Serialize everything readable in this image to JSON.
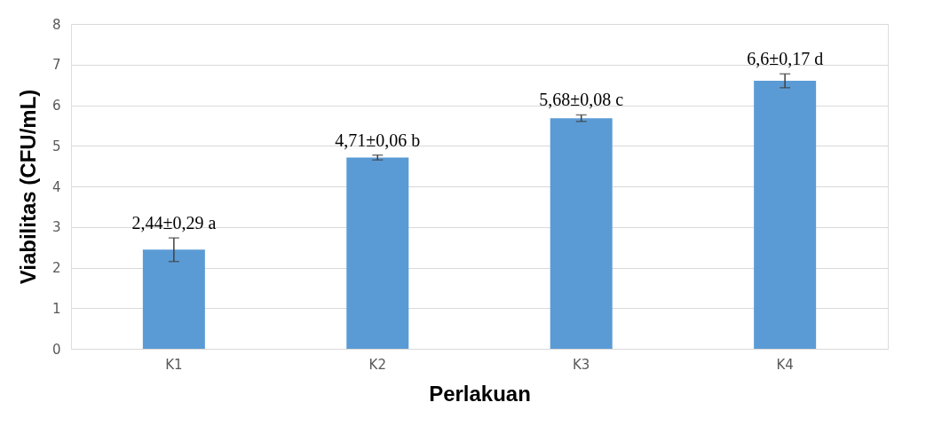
{
  "chart_data": {
    "type": "bar",
    "xlabel": "Perlakuan",
    "ylabel": "Viabilitas (CFU/mL)",
    "categories": [
      "K1",
      "K2",
      "K3",
      "K4"
    ],
    "values": [
      2.44,
      4.71,
      5.68,
      6.6
    ],
    "errors": [
      0.29,
      0.06,
      0.08,
      0.17
    ],
    "value_labels": [
      "2,44±0,29 a",
      "4,71±0,06 b",
      "5,68±0,08 c",
      "6,6±0,17 d"
    ],
    "color": "#5b9bd5",
    "ylim": [
      0,
      8
    ],
    "yticks": [
      0,
      1,
      2,
      3,
      4,
      5,
      6,
      7,
      8
    ],
    "grid": "y"
  }
}
